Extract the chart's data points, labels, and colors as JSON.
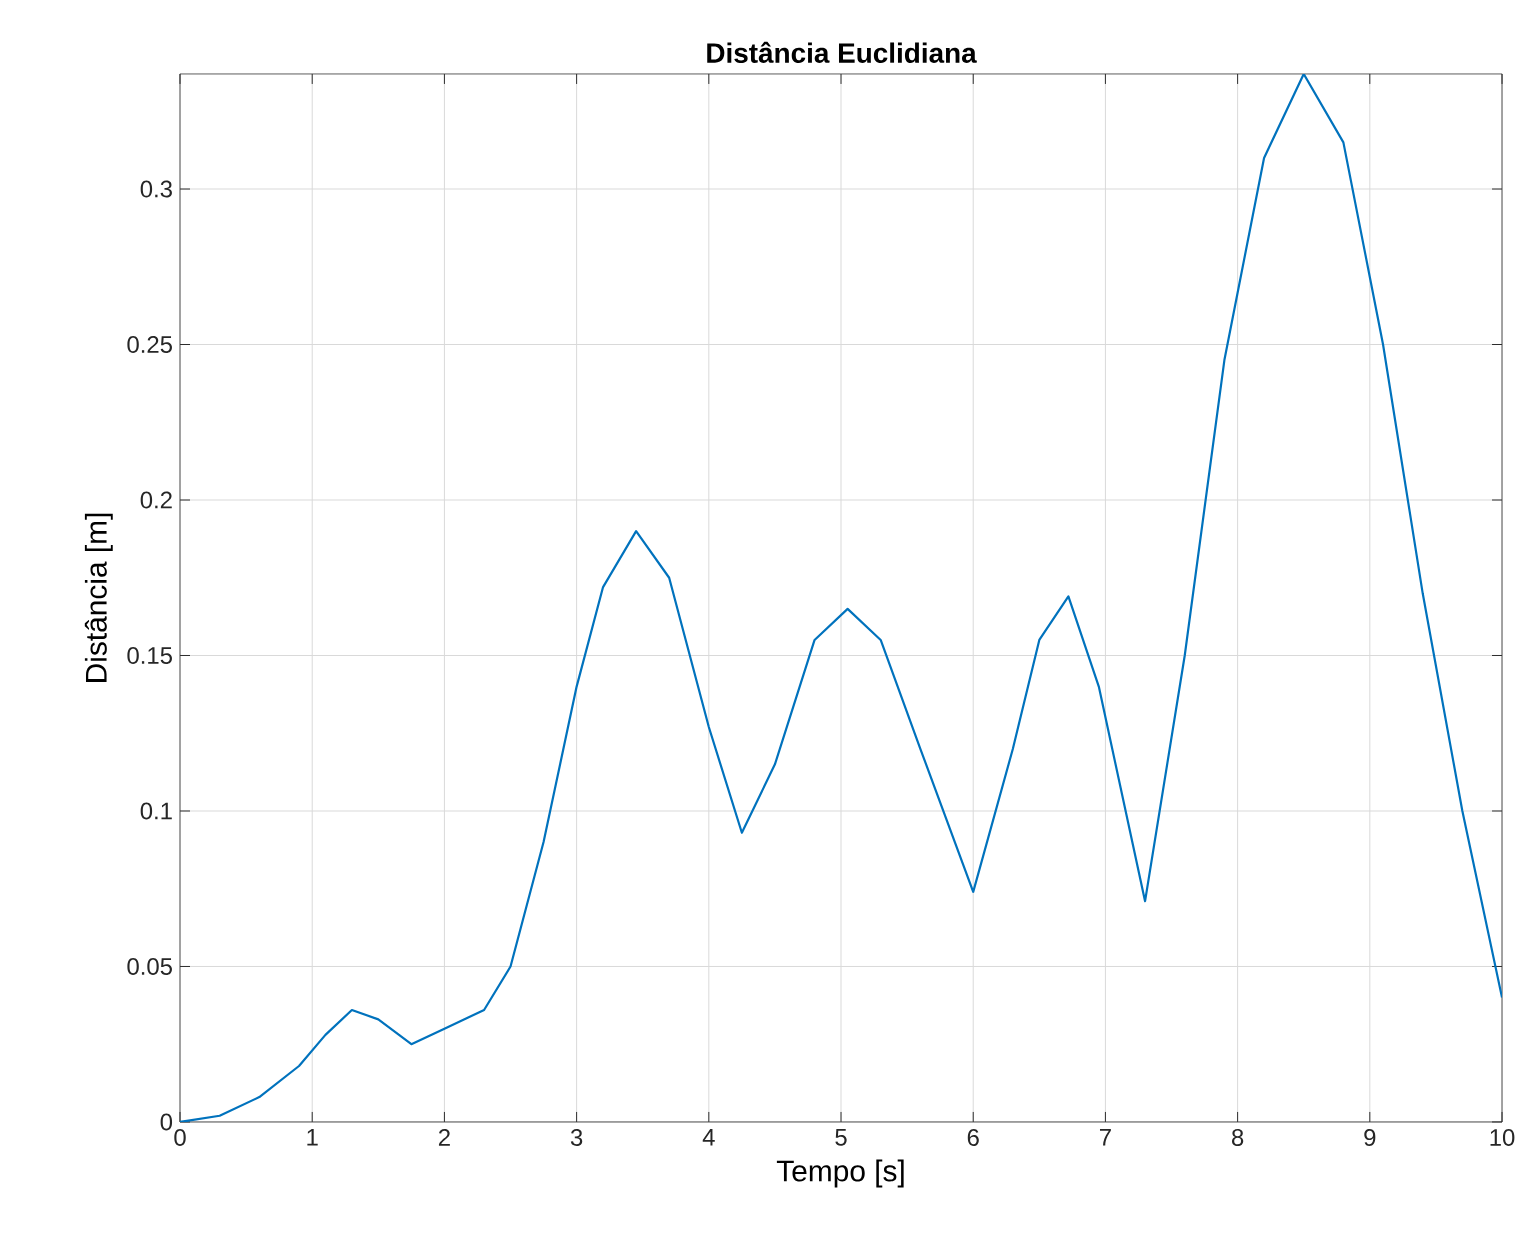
{
  "chart_data": {
    "type": "line",
    "title": "Distância Euclidiana",
    "xlabel": "Tempo [s]",
    "ylabel": "Distância [m]",
    "x": [
      0,
      0.3,
      0.6,
      0.9,
      1.1,
      1.3,
      1.5,
      1.75,
      2.0,
      2.3,
      2.5,
      2.75,
      3.0,
      3.2,
      3.45,
      3.7,
      4.0,
      4.25,
      4.5,
      4.8,
      5.05,
      5.3,
      5.6,
      6.0,
      6.3,
      6.5,
      6.72,
      6.95,
      7.3,
      7.6,
      7.9,
      8.2,
      8.5,
      8.8,
      9.1,
      9.4,
      9.7,
      10
    ],
    "series": [
      {
        "color": "#0072bd",
        "values": [
          0,
          0.002,
          0.008,
          0.018,
          0.028,
          0.036,
          0.033,
          0.025,
          0.03,
          0.036,
          0.05,
          0.09,
          0.14,
          0.172,
          0.19,
          0.175,
          0.127,
          0.093,
          0.115,
          0.155,
          0.165,
          0.155,
          0.12,
          0.074,
          0.12,
          0.155,
          0.169,
          0.14,
          0.071,
          0.15,
          0.245,
          0.31,
          0.337,
          0.315,
          0.25,
          0.17,
          0.1,
          0.04
        ]
      }
    ],
    "xlim": [
      0,
      10
    ],
    "ylim": [
      0,
      0.337
    ],
    "xticks": [
      0,
      1,
      2,
      3,
      4,
      5,
      6,
      7,
      8,
      9,
      10
    ],
    "yticks": [
      0,
      0.05,
      0.1,
      0.15,
      0.2,
      0.25,
      0.3
    ],
    "grid": true,
    "line_style": "solid",
    "marker": "none"
  }
}
